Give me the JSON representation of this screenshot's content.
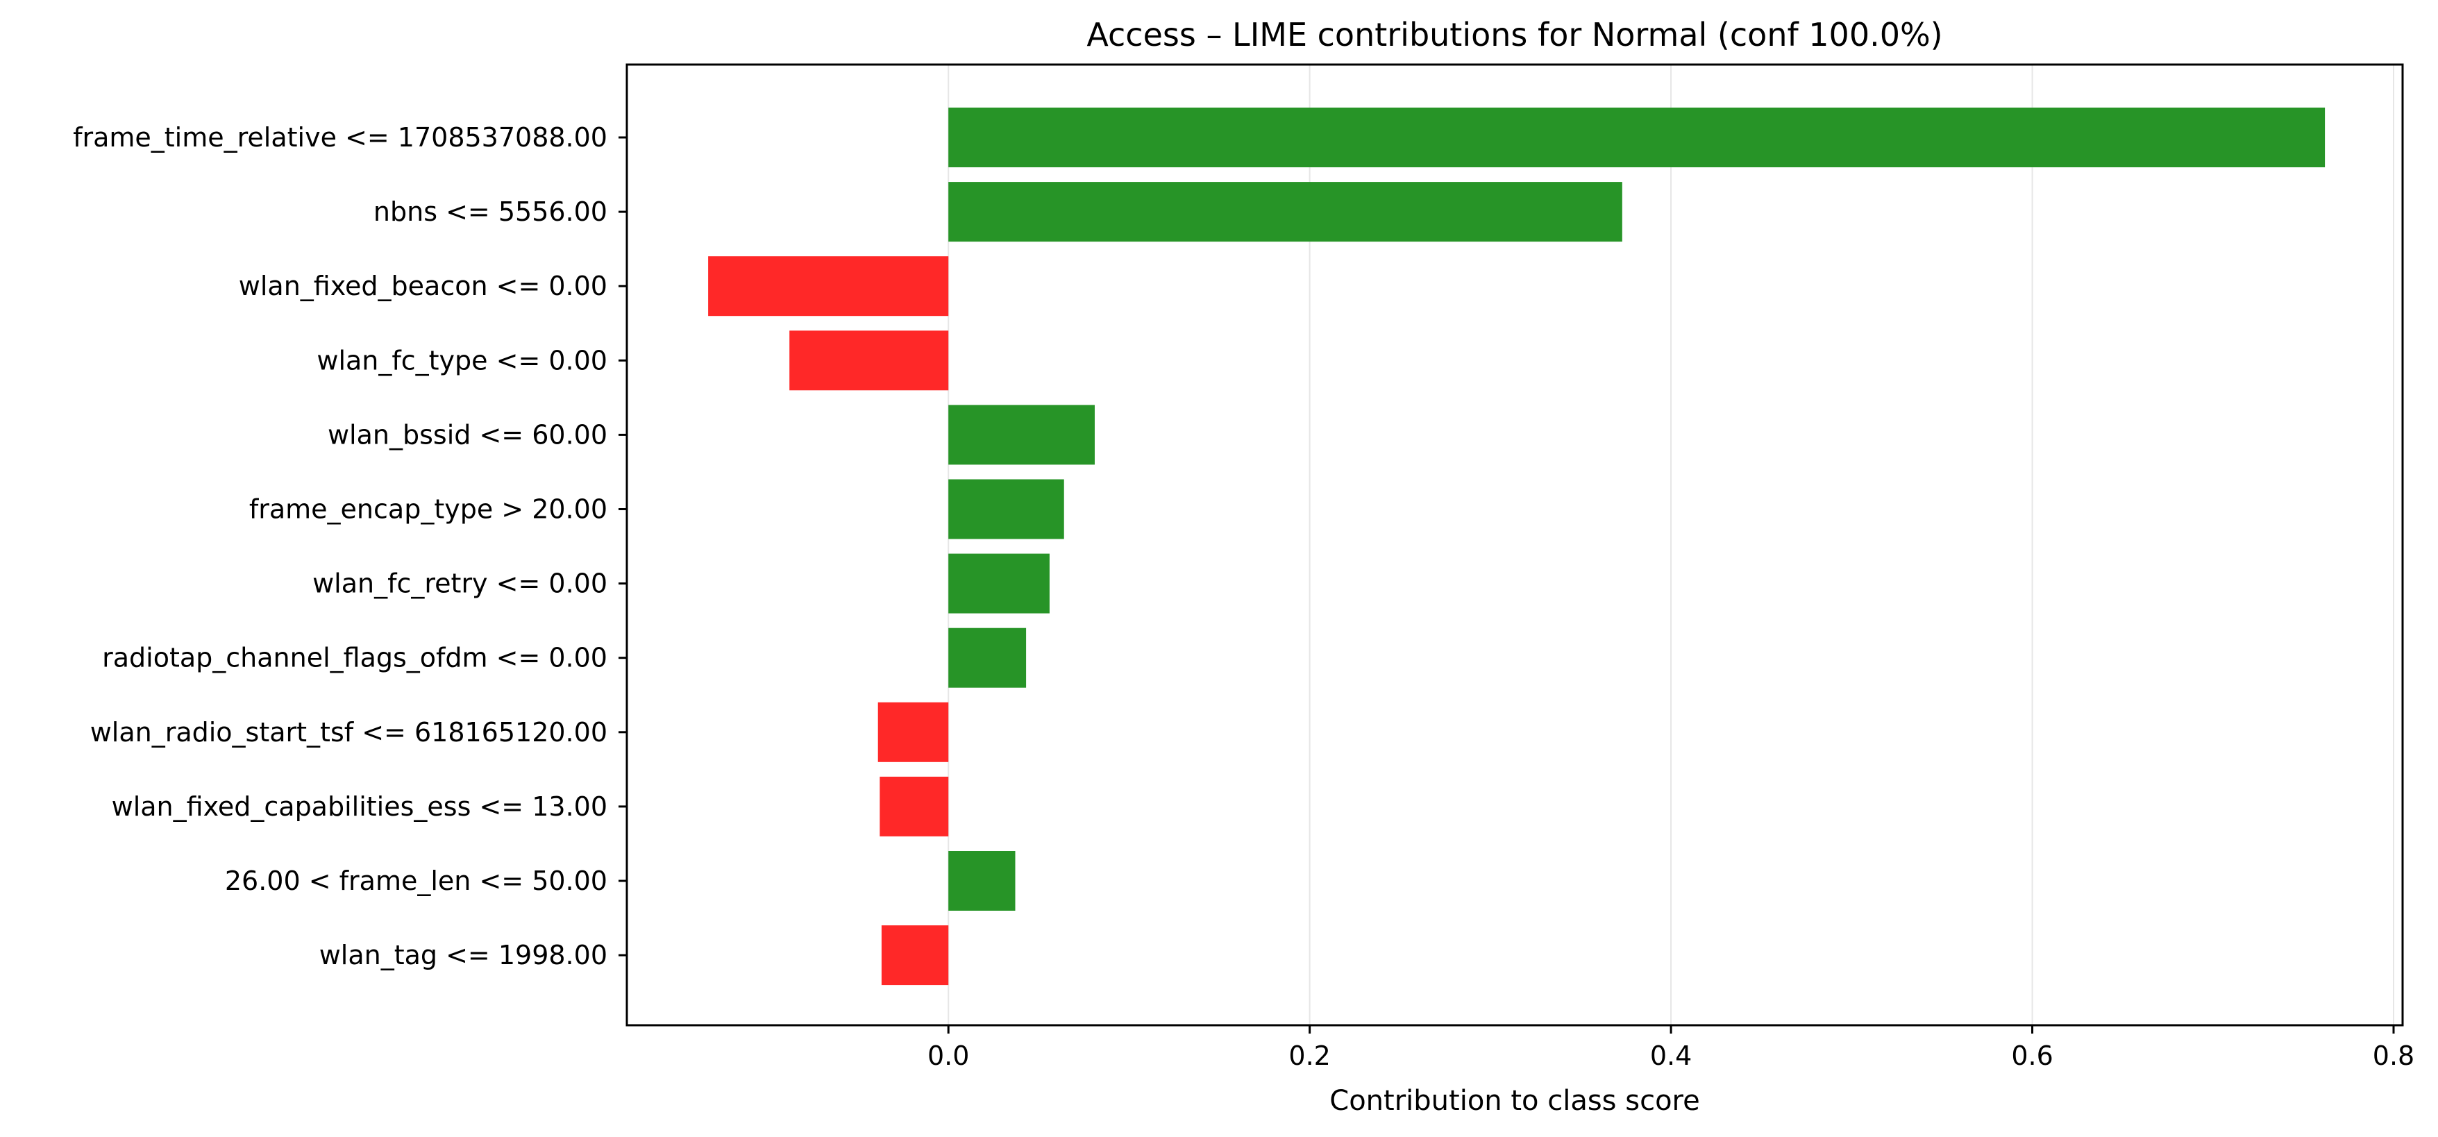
{
  "chart_data": {
    "type": "bar",
    "orientation": "horizontal",
    "title": "Access – LIME contributions for Normal (conf 100.0%)",
    "xlabel": "Contribution to class score",
    "ylabel": "",
    "xlim": [
      -0.178,
      0.805
    ],
    "xticks": [
      0.0,
      0.2,
      0.4,
      0.6,
      0.8
    ],
    "xtick_labels": [
      "0.0",
      "0.2",
      "0.4",
      "0.6",
      "0.8"
    ],
    "grid": "vertical-x",
    "legend": "none",
    "colors": {
      "positive": "#279427",
      "negative": "#ff2828",
      "grid": "#e6e6e6",
      "axis": "#000000"
    },
    "categories": [
      "frame_time_relative <= 1708537088.00",
      "nbns <= 5556.00",
      "wlan_fixed_beacon <= 0.00",
      "wlan_fc_type <= 0.00",
      "wlan_bssid <= 60.00",
      "frame_encap_type > 20.00",
      "wlan_fc_retry <= 0.00",
      "radiotap_channel_flags_ofdm <= 0.00",
      "wlan_radio_start_tsf <= 618165120.00",
      "wlan_fixed_capabilities_ess <= 13.00",
      "26.00 < frame_len <= 50.00",
      "wlan_tag <= 1998.00"
    ],
    "values": [
      0.762,
      0.373,
      -0.133,
      -0.088,
      0.081,
      0.064,
      0.056,
      0.043,
      -0.039,
      -0.038,
      0.037,
      -0.037
    ]
  }
}
